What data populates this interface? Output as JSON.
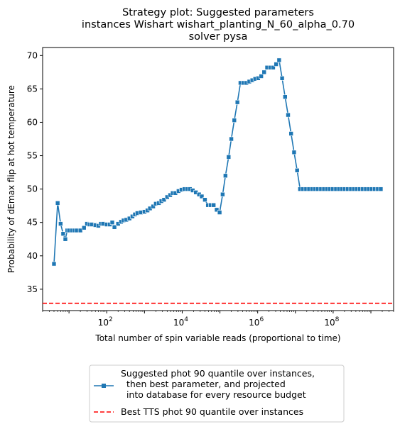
{
  "chart_data": {
    "type": "line",
    "title": [
      "Strategy plot: Suggested parameters",
      "instances Wishart wishart_planting_N_60_alpha_0.70",
      "solver pysa"
    ],
    "xlabel": "Total number of spin variable reads (proportional to time)",
    "ylabel": "Probability of dEmax flip at hot temperature",
    "xscale": "log",
    "xlim": [
      2.0,
      4000000000.0
    ],
    "ylim": [
      31.8,
      71.2
    ],
    "xticks": [
      {
        "value": 100,
        "base": "10",
        "exp": "2"
      },
      {
        "value": 10000,
        "base": "10",
        "exp": "4"
      },
      {
        "value": 1000000,
        "base": "10",
        "exp": "6"
      },
      {
        "value": 100000000,
        "base": "10",
        "exp": "8"
      }
    ],
    "yticks": [
      35,
      40,
      45,
      50,
      55,
      60,
      65,
      70
    ],
    "grid": false,
    "legend_position": "below",
    "series": [
      {
        "name": "Suggested phot 90 quantile over instances,\n  then best parameter, and projected\n  into database for every resource budget",
        "color": "#1f77b4",
        "marker": "square",
        "x": [
          4,
          5,
          6,
          7,
          8,
          9,
          10,
          12,
          14,
          16,
          20,
          25,
          30,
          35,
          40,
          50,
          60,
          70,
          80,
          100,
          120,
          140,
          160,
          200,
          240,
          280,
          330,
          400,
          480,
          560,
          650,
          800,
          1000,
          1200,
          1400,
          1700,
          2000,
          2400,
          2800,
          3300,
          4000,
          4800,
          5600,
          6600,
          8000,
          9600,
          11500,
          13500,
          16000,
          19000,
          23000,
          28000,
          33000,
          40000,
          48000,
          57000,
          68000,
          82000,
          98000,
          118000,
          140000,
          170000,
          200000,
          240000,
          290000,
          350000,
          420000,
          500000,
          600000,
          720000,
          860000,
          1030000,
          1240000,
          1480000,
          1780000,
          2140000,
          2570000,
          3080000,
          3700000,
          4440000,
          5330000,
          6400000,
          7680000,
          9220000,
          11100000,
          13300000,
          16000000,
          19200000,
          23000000,
          27600000,
          33100000,
          39700000,
          47700000,
          57200000,
          68600000,
          82300000,
          98800000,
          119000000,
          143000000,
          171000000,
          205000000,
          246000000,
          296000000,
          355000000,
          426000000,
          511000000,
          613000000,
          736000000,
          883000000,
          1060000000,
          1270000000,
          1530000000,
          1830000000
        ],
        "y": [
          38.8,
          47.9,
          44.8,
          43.3,
          42.5,
          43.8,
          43.8,
          43.8,
          43.8,
          43.8,
          43.8,
          44.2,
          44.8,
          44.7,
          44.7,
          44.6,
          44.5,
          44.8,
          44.8,
          44.7,
          44.7,
          45.0,
          44.3,
          44.8,
          45.1,
          45.3,
          45.4,
          45.6,
          45.9,
          46.2,
          46.4,
          46.5,
          46.6,
          46.8,
          47.1,
          47.4,
          47.8,
          47.9,
          48.2,
          48.4,
          48.8,
          49.1,
          49.4,
          49.4,
          49.7,
          49.9,
          50.0,
          50.0,
          50.0,
          49.8,
          49.5,
          49.2,
          48.9,
          48.4,
          47.6,
          47.6,
          47.6,
          46.9,
          46.5,
          49.2,
          52.0,
          54.8,
          57.5,
          60.3,
          63.0,
          65.9,
          65.9,
          65.9,
          66.1,
          66.3,
          66.5,
          66.6,
          66.9,
          67.5,
          68.2,
          68.2,
          68.2,
          68.7,
          69.3,
          66.6,
          63.8,
          61.1,
          58.3,
          55.5,
          52.8,
          50.0,
          50.0,
          50.0,
          50.0,
          50.0,
          50.0,
          50.0,
          50.0,
          50.0,
          50.0,
          50.0,
          50.0,
          50.0,
          50.0,
          50.0,
          50.0,
          50.0,
          50.0,
          50.0,
          50.0,
          50.0,
          50.0,
          50.0,
          50.0,
          50.0,
          50.0,
          50.0,
          50.0
        ]
      },
      {
        "name": "Best TTS phot 90 quantile over instances",
        "color": "#ff0000",
        "style": "dashed",
        "y_constant": 32.9
      }
    ]
  }
}
